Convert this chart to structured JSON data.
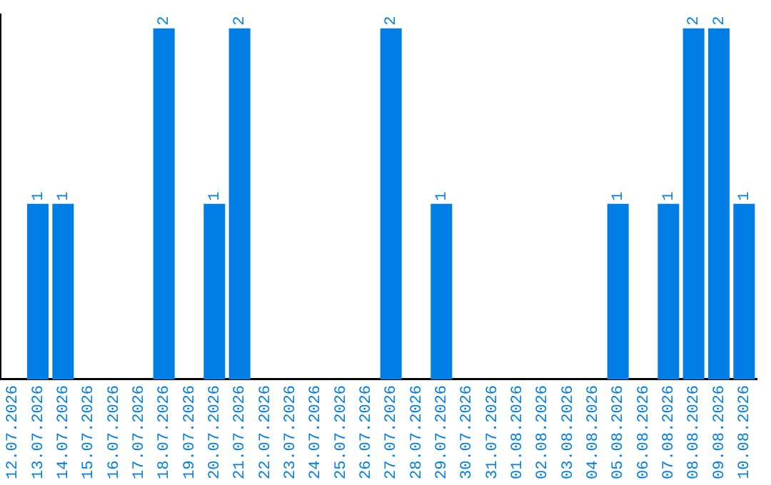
{
  "chart_data": {
    "type": "bar",
    "categories": [
      "12.07.2026",
      "13.07.2026",
      "14.07.2026",
      "15.07.2026",
      "16.07.2026",
      "17.07.2026",
      "18.07.2026",
      "19.07.2026",
      "20.07.2026",
      "21.07.2026",
      "22.07.2026",
      "23.07.2026",
      "24.07.2026",
      "25.07.2026",
      "26.07.2026",
      "27.07.2026",
      "28.07.2026",
      "29.07.2026",
      "30.07.2026",
      "31.07.2026",
      "01.08.2026",
      "02.08.2026",
      "03.08.2026",
      "04.08.2026",
      "05.08.2026",
      "06.08.2026",
      "07.08.2026",
      "08.08.2026",
      "09.08.2026",
      "10.08.2026"
    ],
    "values": [
      0,
      1,
      1,
      0,
      0,
      0,
      2,
      0,
      1,
      2,
      0,
      0,
      0,
      0,
      0,
      2,
      0,
      1,
      0,
      0,
      0,
      0,
      0,
      0,
      1,
      0,
      1,
      2,
      2,
      1
    ],
    "value_labels": [
      null,
      "1",
      "1",
      null,
      null,
      null,
      "2",
      null,
      "1",
      "2",
      null,
      null,
      null,
      null,
      null,
      "2",
      null,
      "1",
      null,
      null,
      null,
      null,
      null,
      null,
      "1",
      null,
      "1",
      "2",
      "2",
      "1"
    ],
    "color": "#007ee5",
    "ylim": [
      0,
      2.08
    ],
    "tick_labels": "x",
    "grid": false,
    "legend": false
  }
}
